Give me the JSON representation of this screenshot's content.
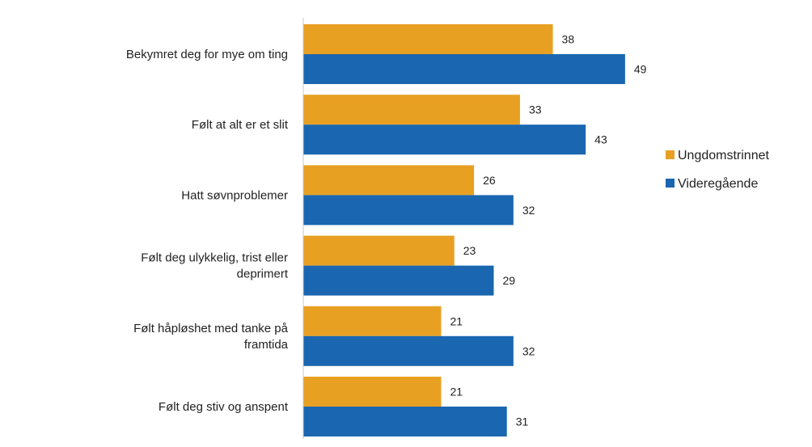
{
  "chart_data": {
    "type": "bar",
    "orientation": "horizontal",
    "categories": [
      [
        "Bekymret deg for mye om ting"
      ],
      [
        "Følt at alt er et slit"
      ],
      [
        "Hatt søvnproblemer"
      ],
      [
        "Følt deg ulykkelig, trist eller",
        "deprimert"
      ],
      [
        "Følt håpløshet med tanke på",
        "framtida"
      ],
      [
        "Følt deg stiv og anspent"
      ]
    ],
    "series": [
      {
        "name": "Ungdomstrinnet",
        "color": "#E8A023",
        "values": [
          38,
          33,
          26,
          23,
          21,
          21
        ]
      },
      {
        "name": "Videregående",
        "color": "#1A66B0",
        "values": [
          49,
          43,
          32,
          29,
          32,
          31
        ]
      }
    ],
    "title": "",
    "xlabel": "",
    "ylabel": "",
    "xlim": [
      0,
      60
    ],
    "grid": false,
    "legend_position": "right"
  }
}
